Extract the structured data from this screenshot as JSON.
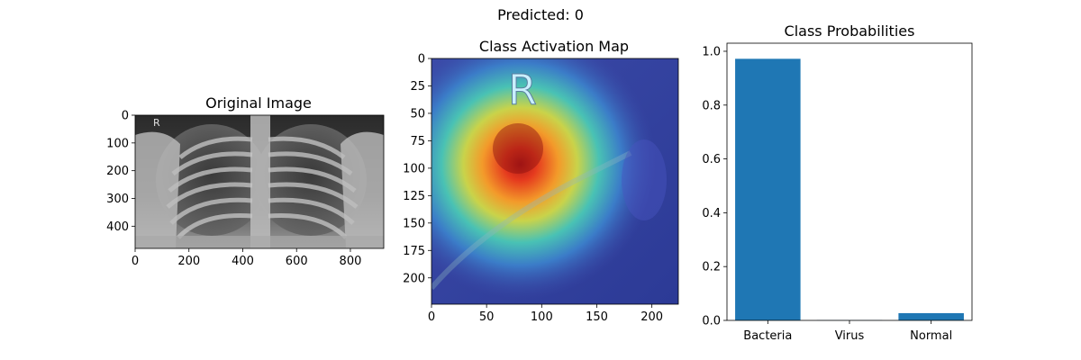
{
  "figure": {
    "suptitle": "Predicted: 0"
  },
  "panels": {
    "original": {
      "title": "Original Image",
      "xlim": [
        0,
        924
      ],
      "ylim": [
        0,
        480
      ],
      "xticks": [
        "0",
        "200",
        "400",
        "600",
        "800"
      ],
      "yticks": [
        "0",
        "100",
        "200",
        "300",
        "400"
      ],
      "marker_letter": "R"
    },
    "cam": {
      "title": "Class Activation Map",
      "xlim": [
        0,
        224
      ],
      "ylim": [
        0,
        224
      ],
      "xticks": [
        "0",
        "50",
        "100",
        "150",
        "200"
      ],
      "yticks": [
        "0",
        "25",
        "50",
        "75",
        "100",
        "125",
        "150",
        "175",
        "200"
      ],
      "marker_letter": "R",
      "colormap": "jet"
    }
  },
  "chart_data": {
    "type": "bar",
    "title": "Class Probabilities",
    "categories": [
      "Bacteria",
      "Virus",
      "Normal"
    ],
    "values": [
      0.972,
      0.001,
      0.027
    ],
    "ylim": [
      0,
      1.03
    ],
    "yticks": [
      "0.0",
      "0.2",
      "0.4",
      "0.6",
      "0.8",
      "1.0"
    ],
    "xlabel": "",
    "ylabel": "",
    "bar_color": "#1f77b4",
    "grid": false
  }
}
